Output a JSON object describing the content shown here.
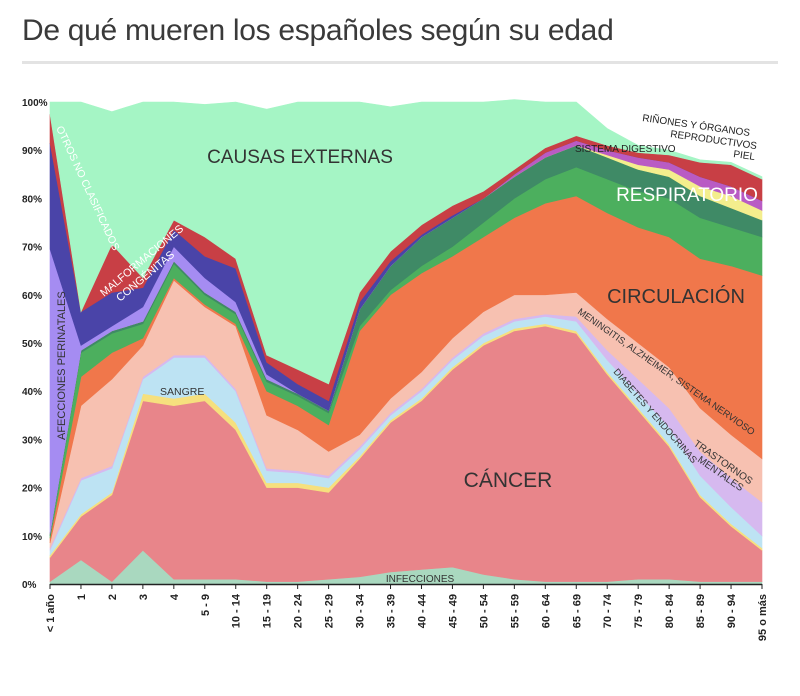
{
  "page": {
    "title": "De qué mueren los españoles según su edad"
  },
  "chart_data": {
    "type": "area",
    "stacking": "percent",
    "x": [
      "< 1 año",
      "1",
      "2",
      "3",
      "4",
      "5 - 9",
      "10 - 14",
      "15 - 19",
      "20 - 24",
      "25 - 29",
      "30 - 34",
      "35 - 39",
      "40 - 44",
      "45 - 49",
      "50 - 54",
      "55 - 59",
      "60 - 64",
      "65 - 69",
      "70 - 74",
      "75 - 79",
      "80 - 84",
      "85 - 89",
      "90 - 94",
      "95 o más"
    ],
    "yticks": [
      "0%",
      "10%",
      "20%",
      "30%",
      "40%",
      "50%",
      "60%",
      "70%",
      "80%",
      "90%",
      "100%"
    ],
    "ylim": [
      0,
      100
    ],
    "series": [
      {
        "name": "INFECCIONES",
        "color": "#a9d8bf",
        "values": [
          0.5,
          5,
          0.5,
          7,
          1,
          1,
          1,
          0.5,
          0.5,
          1,
          1.5,
          2.5,
          3,
          3.5,
          2,
          1,
          0.5,
          0.5,
          0.5,
          1,
          1,
          0.5,
          0.5,
          0.5
        ]
      },
      {
        "name": "CÁNCER",
        "color": "#e8858a",
        "values": [
          5,
          9,
          18,
          31,
          36,
          37,
          31,
          19.5,
          19.5,
          18,
          24.5,
          31,
          35,
          41,
          47.5,
          51.5,
          53,
          51.5,
          43,
          35,
          27.5,
          17.5,
          11.5,
          6.5
        ]
      },
      {
        "name": "SANGRE",
        "color": "#f6e07e",
        "values": [
          0.5,
          0.5,
          0.5,
          1.5,
          1.5,
          1.5,
          1.5,
          1,
          1,
          1,
          0.5,
          0.5,
          0.5,
          0.5,
          0.5,
          0.5,
          0.5,
          0.5,
          0.5,
          0.5,
          0.5,
          0.5,
          0.5,
          0.5
        ]
      },
      {
        "name": "DIABETES Y ENDOCRINAS",
        "color": "#bde3f3",
        "values": [
          1,
          7,
          5,
          3,
          8.5,
          7.5,
          6.5,
          2.5,
          2,
          2,
          1.5,
          1,
          1.5,
          1.5,
          1.5,
          1.5,
          1.5,
          2,
          2.5,
          3,
          3.5,
          4,
          3.5,
          2.5
        ]
      },
      {
        "name": "TRASTORNOS MENTALES",
        "color": "#d6b9ef",
        "values": [
          0.5,
          0.5,
          0.5,
          0.5,
          0.5,
          0.5,
          0.5,
          0.5,
          0.5,
          0.5,
          0.5,
          0.5,
          0.5,
          0.5,
          0.5,
          0.5,
          0.5,
          1,
          2,
          3,
          4,
          5,
          6,
          7
        ]
      },
      {
        "name": "MENINGITIS, ALZHEIMER, SISTEMA NERVIOSO",
        "color": "#f7c1b1",
        "values": [
          1,
          15,
          18,
          6.5,
          15.5,
          10,
          13,
          11,
          8.5,
          5,
          2.5,
          3,
          3.5,
          4,
          4.5,
          5,
          4,
          5,
          6.5,
          7.5,
          8.5,
          9,
          9,
          9
        ]
      },
      {
        "name": "CIRCULACIÓN",
        "color": "#f0774b",
        "values": [
          1,
          6,
          5.5,
          1.5,
          0.5,
          0.5,
          0.5,
          5,
          5,
          5.5,
          21.5,
          21.5,
          20.5,
          17,
          15.5,
          16,
          19,
          20,
          22,
          24,
          27,
          31,
          35,
          38
        ]
      },
      {
        "name": "RESPIRATORIO",
        "color": "#4caf5e",
        "values": [
          0.5,
          5,
          4,
          3,
          3,
          2,
          2,
          2,
          2,
          2.5,
          1,
          1,
          1.5,
          2,
          3,
          4,
          5,
          6,
          7,
          7.5,
          8,
          8.5,
          8,
          8
        ]
      },
      {
        "name": "SISTEMA DIGESTIVO",
        "color": "#3f8a66",
        "values": [
          0.5,
          0.5,
          0.5,
          0.5,
          0.5,
          0.5,
          0.5,
          0.5,
          0.5,
          0.5,
          3.5,
          5,
          6,
          6,
          5,
          4.5,
          4.5,
          4.5,
          4.5,
          4.5,
          4.5,
          4.5,
          4,
          3.5
        ]
      },
      {
        "name": "PIEL",
        "color": "#f4ee8d",
        "values": [
          0,
          0,
          0,
          0,
          0,
          0,
          0,
          0,
          0,
          0,
          0,
          0,
          0,
          0,
          0,
          0,
          0,
          0,
          0.5,
          1,
          1.5,
          2,
          2.5,
          2
        ]
      },
      {
        "name": "RIÑONES Y ÓRGANOS REPRODUCTIVOS",
        "color": "#b95bc4",
        "values": [
          0,
          0,
          0,
          0,
          0,
          0,
          0,
          0,
          0,
          0,
          0,
          0,
          0,
          0,
          0,
          0.5,
          1,
          1,
          1,
          1.5,
          1.5,
          2,
          2,
          2
        ]
      },
      {
        "name": "AFECCIONES PERINATALES",
        "color": "#a58cf2",
        "values": [
          59,
          1,
          1,
          3,
          3,
          3,
          2,
          1,
          0,
          0,
          0,
          0,
          0,
          0,
          0,
          0,
          0,
          0,
          0,
          0,
          0,
          0,
          0,
          0
        ]
      },
      {
        "name": "MALFORMACIONES CONGÉNITAS",
        "color": "#4a44a8",
        "values": [
          22,
          7,
          7,
          4,
          3.5,
          4.5,
          7,
          2.5,
          2,
          2,
          1.5,
          1,
          0.5,
          0.5,
          0,
          0,
          0,
          0,
          0,
          0,
          0,
          0,
          0,
          0
        ]
      },
      {
        "name": "OTROS NO CLASIFICADOS",
        "color": "#c83f45",
        "values": [
          6,
          0,
          10,
          2,
          2,
          4,
          2,
          1.5,
          3,
          3.5,
          2,
          2,
          2,
          2,
          1.5,
          1,
          1,
          1,
          1,
          1,
          1.5,
          3,
          4.5,
          4.5
        ]
      },
      {
        "name": "CAUSAS EXTERNAS",
        "color": "#a5f5c5",
        "values": [
          2.5,
          43.5,
          27.5,
          36.5,
          24.5,
          27.5,
          32.5,
          51,
          55.5,
          58.5,
          39.5,
          30,
          25.5,
          21.5,
          18.5,
          14.5,
          9.5,
          7,
          3.5,
          1.5,
          1,
          0.5,
          0.5,
          0.5
        ]
      }
    ],
    "labels": [
      {
        "text": "CAUSAS EXTERNAS"
      },
      {
        "text": "OTROS NO CLASIFICADOS"
      },
      {
        "text": "MALFORMACIONES"
      },
      {
        "text": "CONGÉNITAS"
      },
      {
        "text": "AFECCIONES PERINATALES"
      },
      {
        "text": "SANGRE"
      },
      {
        "text": "CÁNCER"
      },
      {
        "text": "INFECCIONES"
      },
      {
        "text": "CIRCULACIÓN"
      },
      {
        "text": "RESPIRATORIO"
      },
      {
        "text": "SISTEMA DIGESTIVO"
      },
      {
        "text": "RIÑONES Y ÓRGANOS"
      },
      {
        "text": "REPRODUCTIVOS"
      },
      {
        "text": "PIEL"
      },
      {
        "text": "MENINGITIS, ALZHEIMER, SISTEMA NERVIOSO"
      },
      {
        "text": "DIABETES Y ENDOCRINAS"
      },
      {
        "text": "TRASTORNOS"
      },
      {
        "text": "MENTALES"
      }
    ]
  }
}
